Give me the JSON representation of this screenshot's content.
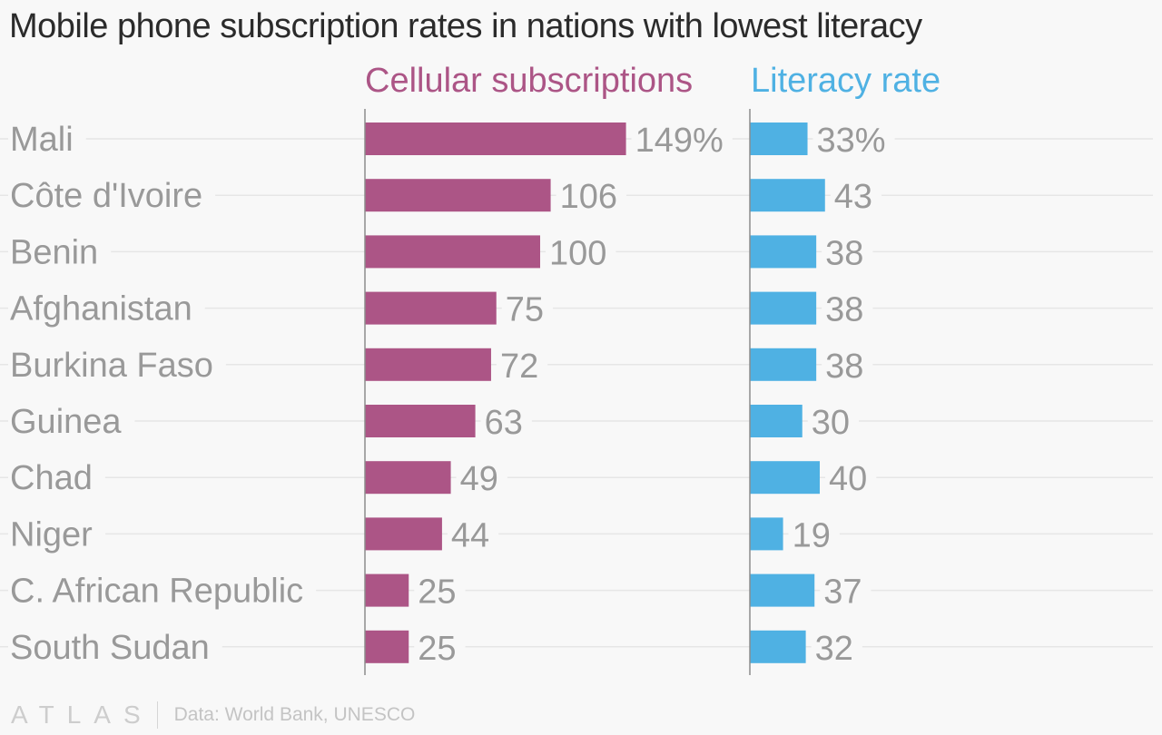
{
  "chart_data": {
    "type": "bar",
    "title": "Mobile phone subscription rates in nations with lowest literacy",
    "categories": [
      "Mali",
      "Côte d'Ivoire",
      "Benin",
      "Afghanistan",
      "Burkina Faso",
      "Guinea",
      "Chad",
      "Niger",
      "C. African Republic",
      "South Sudan"
    ],
    "series": [
      {
        "name": "Cellular subscriptions",
        "values": [
          149,
          106,
          100,
          75,
          72,
          63,
          49,
          44,
          25,
          25
        ],
        "labels": [
          "149%",
          "106",
          "100",
          "75",
          "72",
          "63",
          "49",
          "44",
          "25",
          "25"
        ],
        "color": "#ac5586"
      },
      {
        "name": "Literacy rate",
        "values": [
          33,
          43,
          38,
          38,
          38,
          30,
          40,
          19,
          37,
          32
        ],
        "labels": [
          "33%",
          "43",
          "38",
          "38",
          "38",
          "30",
          "40",
          "19",
          "37",
          "32"
        ],
        "color": "#4fb1e3"
      }
    ],
    "orientation": "horizontal",
    "grid": true,
    "label_color": "#999999",
    "grid_color": "#e6e6e6",
    "axis_color": "#8c8c8c"
  },
  "footer": {
    "logo": "ATLAS",
    "source": "Data: World Bank, UNESCO"
  }
}
